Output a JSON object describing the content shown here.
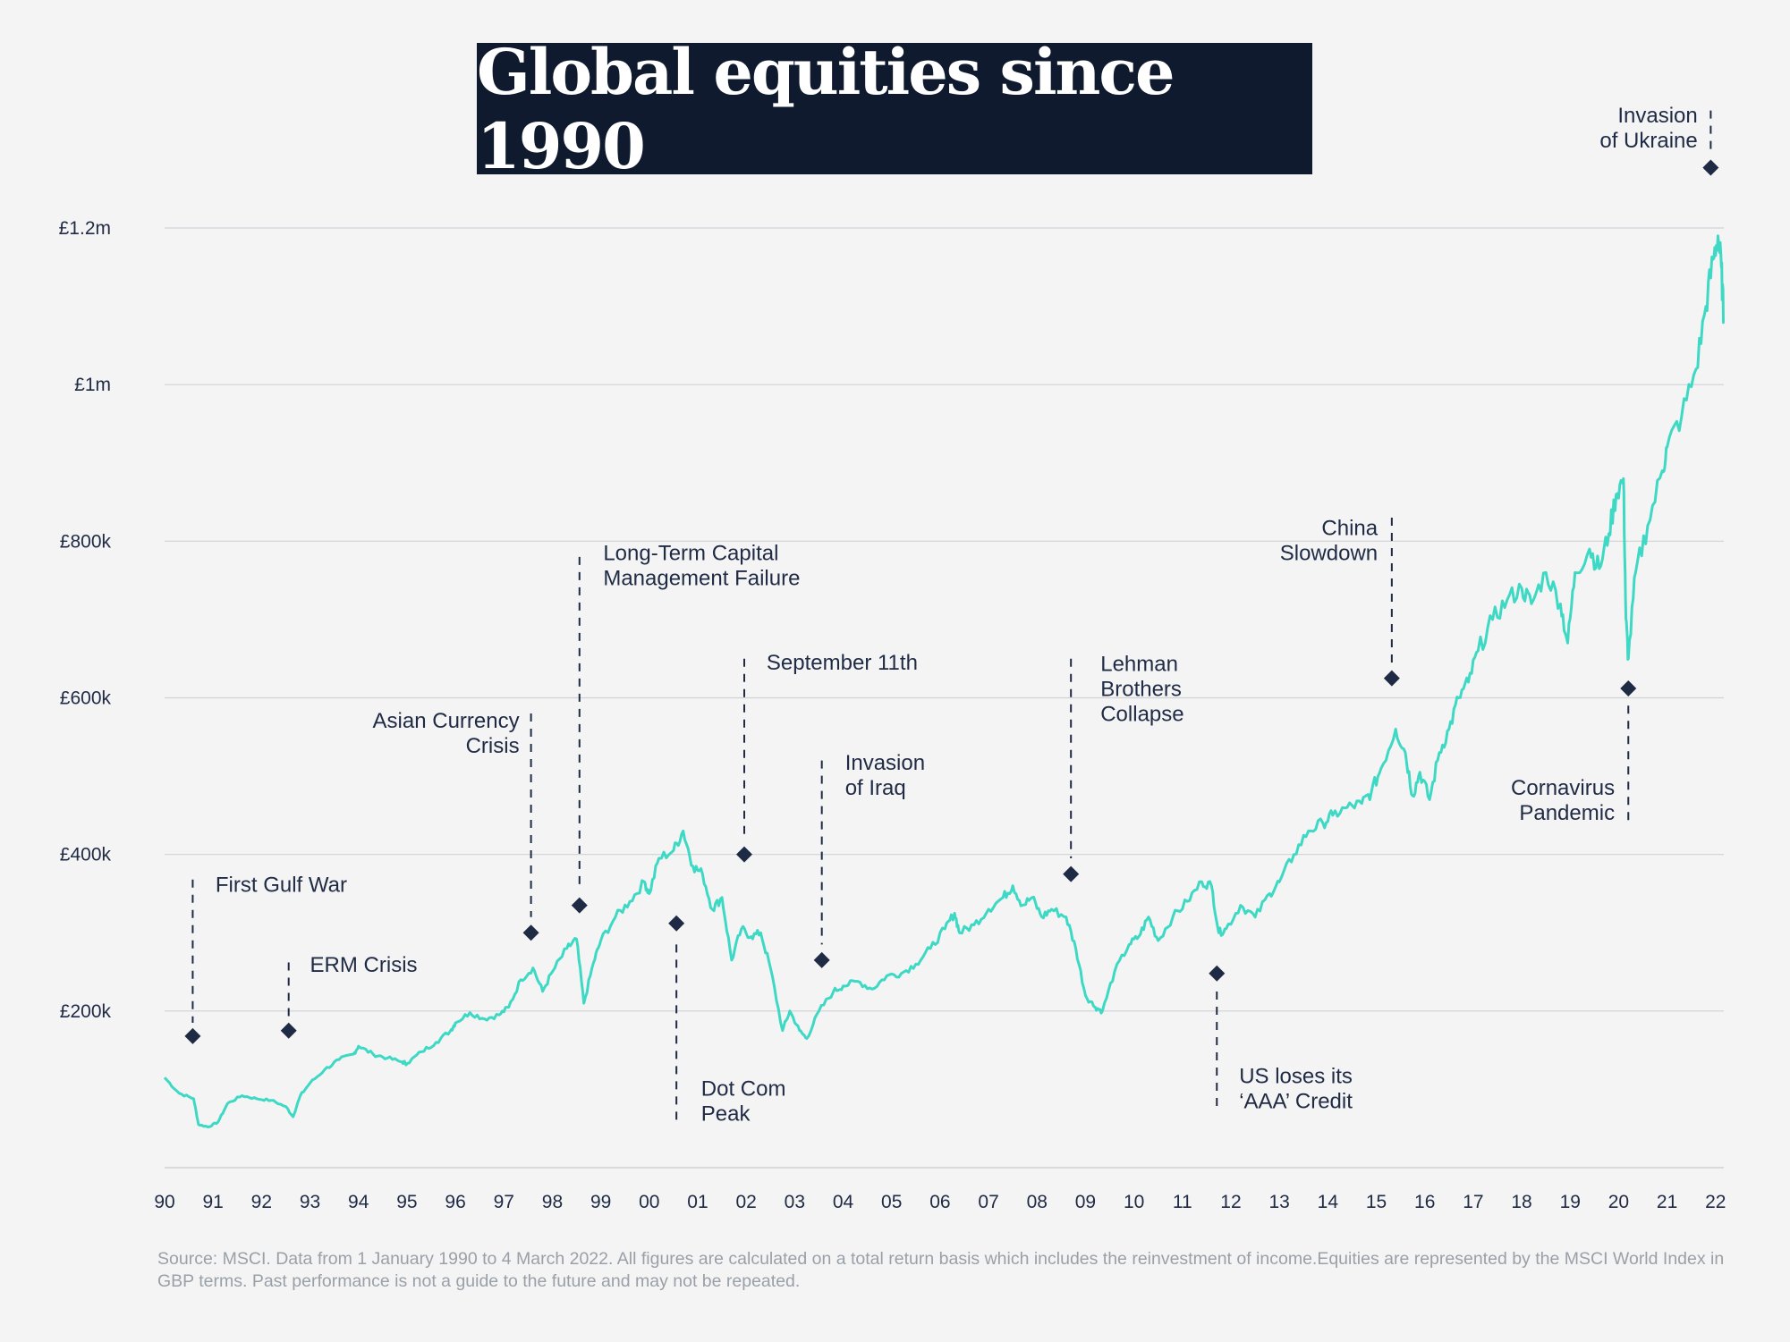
{
  "chart_data": {
    "type": "line",
    "title": "Global equities since 1990",
    "ylim": [
      0,
      1200000
    ],
    "yticks": [
      {
        "value": 200000,
        "label": "£200k"
      },
      {
        "value": 400000,
        "label": "£400k"
      },
      {
        "value": 600000,
        "label": "£600k"
      },
      {
        "value": 800000,
        "label": "£800k"
      },
      {
        "value": 1000000,
        "label": "£1m"
      },
      {
        "value": 1200000,
        "label": "£1.2m"
      }
    ],
    "xlim": [
      1990,
      2022.17
    ],
    "xticks": [
      "90",
      "91",
      "92",
      "93",
      "94",
      "95",
      "96",
      "97",
      "98",
      "99",
      "00",
      "01",
      "02",
      "03",
      "04",
      "05",
      "06",
      "07",
      "08",
      "09",
      "10",
      "11",
      "12",
      "13",
      "14",
      "15",
      "16",
      "17",
      "18",
      "19",
      "20",
      "21",
      "22"
    ],
    "grid": true,
    "series": [
      {
        "color": "#3ed9c4",
        "points": [
          [
            1990.0,
            115000
          ],
          [
            1990.3,
            95000
          ],
          [
            1990.6,
            88000
          ],
          [
            1990.7,
            55000
          ],
          [
            1990.9,
            52000
          ],
          [
            1991.1,
            58000
          ],
          [
            1991.3,
            82000
          ],
          [
            1991.6,
            92000
          ],
          [
            1991.9,
            88000
          ],
          [
            1992.2,
            86000
          ],
          [
            1992.5,
            78000
          ],
          [
            1992.65,
            65000
          ],
          [
            1992.8,
            92000
          ],
          [
            1993.0,
            108000
          ],
          [
            1993.3,
            125000
          ],
          [
            1993.6,
            138000
          ],
          [
            1993.9,
            145000
          ],
          [
            1994.0,
            155000
          ],
          [
            1994.3,
            145000
          ],
          [
            1994.6,
            140000
          ],
          [
            1994.9,
            135000
          ],
          [
            1995.0,
            133000
          ],
          [
            1995.3,
            148000
          ],
          [
            1995.6,
            160000
          ],
          [
            1995.9,
            175000
          ],
          [
            1996.0,
            185000
          ],
          [
            1996.3,
            198000
          ],
          [
            1996.6,
            190000
          ],
          [
            1996.9,
            195000
          ],
          [
            1997.1,
            205000
          ],
          [
            1997.35,
            240000
          ],
          [
            1997.6,
            255000
          ],
          [
            1997.8,
            225000
          ],
          [
            1998.0,
            250000
          ],
          [
            1998.3,
            280000
          ],
          [
            1998.5,
            292000
          ],
          [
            1998.65,
            210000
          ],
          [
            1998.85,
            262000
          ],
          [
            1999.0,
            290000
          ],
          [
            1999.3,
            320000
          ],
          [
            1999.6,
            340000
          ],
          [
            1999.9,
            365000
          ],
          [
            2000.0,
            350000
          ],
          [
            2000.2,
            395000
          ],
          [
            2000.5,
            405000
          ],
          [
            2000.7,
            430000
          ],
          [
            2000.9,
            385000
          ],
          [
            2001.1,
            375000
          ],
          [
            2001.3,
            330000
          ],
          [
            2001.5,
            345000
          ],
          [
            2001.7,
            265000
          ],
          [
            2001.9,
            305000
          ],
          [
            2002.1,
            295000
          ],
          [
            2002.3,
            300000
          ],
          [
            2002.5,
            255000
          ],
          [
            2002.75,
            175000
          ],
          [
            2002.9,
            200000
          ],
          [
            2003.1,
            175000
          ],
          [
            2003.25,
            165000
          ],
          [
            2003.5,
            200000
          ],
          [
            2003.8,
            225000
          ],
          [
            2004.0,
            232000
          ],
          [
            2004.3,
            238000
          ],
          [
            2004.6,
            228000
          ],
          [
            2004.9,
            245000
          ],
          [
            2005.2,
            248000
          ],
          [
            2005.5,
            260000
          ],
          [
            2005.8,
            280000
          ],
          [
            2006.1,
            305000
          ],
          [
            2006.3,
            325000
          ],
          [
            2006.4,
            300000
          ],
          [
            2006.7,
            310000
          ],
          [
            2007.0,
            330000
          ],
          [
            2007.3,
            345000
          ],
          [
            2007.5,
            360000
          ],
          [
            2007.7,
            335000
          ],
          [
            2007.9,
            345000
          ],
          [
            2008.1,
            320000
          ],
          [
            2008.3,
            330000
          ],
          [
            2008.6,
            320000
          ],
          [
            2008.8,
            280000
          ],
          [
            2009.0,
            220000
          ],
          [
            2009.2,
            205000
          ],
          [
            2009.35,
            200000
          ],
          [
            2009.6,
            250000
          ],
          [
            2009.9,
            285000
          ],
          [
            2010.1,
            295000
          ],
          [
            2010.3,
            320000
          ],
          [
            2010.5,
            290000
          ],
          [
            2010.8,
            320000
          ],
          [
            2011.1,
            340000
          ],
          [
            2011.4,
            365000
          ],
          [
            2011.6,
            360000
          ],
          [
            2011.75,
            300000
          ],
          [
            2011.9,
            305000
          ],
          [
            2012.2,
            335000
          ],
          [
            2012.5,
            320000
          ],
          [
            2012.8,
            350000
          ],
          [
            2013.0,
            365000
          ],
          [
            2013.3,
            400000
          ],
          [
            2013.6,
            430000
          ],
          [
            2013.9,
            440000
          ],
          [
            2014.1,
            450000
          ],
          [
            2014.4,
            460000
          ],
          [
            2014.7,
            465000
          ],
          [
            2014.9,
            480000
          ],
          [
            2015.1,
            510000
          ],
          [
            2015.4,
            560000
          ],
          [
            2015.6,
            530000
          ],
          [
            2015.75,
            475000
          ],
          [
            2015.9,
            505000
          ],
          [
            2016.1,
            470000
          ],
          [
            2016.3,
            530000
          ],
          [
            2016.5,
            560000
          ],
          [
            2016.7,
            600000
          ],
          [
            2016.9,
            620000
          ],
          [
            2017.1,
            660000
          ],
          [
            2017.4,
            700000
          ],
          [
            2017.7,
            725000
          ],
          [
            2018.0,
            740000
          ],
          [
            2018.2,
            720000
          ],
          [
            2018.5,
            760000
          ],
          [
            2018.8,
            720000
          ],
          [
            2018.95,
            670000
          ],
          [
            2019.1,
            760000
          ],
          [
            2019.4,
            790000
          ],
          [
            2019.6,
            765000
          ],
          [
            2019.8,
            810000
          ],
          [
            2019.95,
            860000
          ],
          [
            2020.1,
            880000
          ],
          [
            2020.15,
            700000
          ],
          [
            2020.2,
            650000
          ],
          [
            2020.35,
            760000
          ],
          [
            2020.6,
            820000
          ],
          [
            2020.9,
            890000
          ],
          [
            2021.0,
            920000
          ],
          [
            2021.3,
            960000
          ],
          [
            2021.6,
            1020000
          ],
          [
            2021.8,
            1100000
          ],
          [
            2021.95,
            1160000
          ],
          [
            2022.05,
            1190000
          ],
          [
            2022.12,
            1150000
          ],
          [
            2022.17,
            1080000
          ]
        ]
      }
    ],
    "annotations": [
      {
        "label": "First Gulf War",
        "x": 1990.58,
        "marker_value": 168000,
        "line_top": 368000,
        "line_bottom": 185000,
        "text_x": 1991.05,
        "text_value": 352000
      },
      {
        "label": "ERM Crisis",
        "x": 1992.56,
        "marker_value": 175000,
        "line_top": 262000,
        "line_bottom": 190000,
        "text_x": 1993.0,
        "text_value": 250000
      },
      {
        "label": "Asian Currency\nCrisis",
        "x": 1997.56,
        "marker_value": 300000,
        "line_top": 580000,
        "line_bottom": 320000,
        "text_x": 1997.32,
        "text_value": 562000,
        "anchor": "end"
      },
      {
        "label": "Long-Term Capital\nManagement Failure",
        "x": 1998.56,
        "marker_value": 335000,
        "line_top": 780000,
        "line_bottom": 355000,
        "text_x": 1999.05,
        "text_value": 776000
      },
      {
        "label": "Dot Com\nPeak",
        "x": 2000.56,
        "marker_value": 312000,
        "line_top": 285000,
        "line_bottom": 55000,
        "text_x": 2001.07,
        "text_value": 92000
      },
      {
        "label": "September 11th",
        "x": 2001.96,
        "marker_value": 400000,
        "line_top": 650000,
        "line_bottom": 420000,
        "text_x": 2002.42,
        "text_value": 636000
      },
      {
        "label": "Invasion\nof Iraq",
        "x": 2003.56,
        "marker_value": 265000,
        "line_top": 520000,
        "line_bottom": 285000,
        "text_x": 2004.04,
        "text_value": 508000
      },
      {
        "label": "Lehman\nBrothers\nCollapse",
        "x": 2008.7,
        "marker_value": 375000,
        "line_top": 650000,
        "line_bottom": 395000,
        "text_x": 2009.31,
        "text_value": 634000
      },
      {
        "label": "US loses its\n‘AAA’ Credit",
        "x": 2011.71,
        "marker_value": 248000,
        "line_top": 225000,
        "line_bottom": 75000,
        "text_x": 2012.17,
        "text_value": 108000
      },
      {
        "label": "China\nSlowdown",
        "x": 2015.32,
        "marker_value": 625000,
        "line_top": 830000,
        "line_bottom": 645000,
        "text_x": 2015.03,
        "text_value": 808000,
        "anchor": "end"
      },
      {
        "label": "Cornavirus\nPandemic",
        "x": 2020.2,
        "marker_value": 612000,
        "line_top": 590000,
        "line_bottom": 440000,
        "text_x": 2019.92,
        "text_value": 476000,
        "anchor": "end"
      },
      {
        "label": "Invasion\nof Ukraine",
        "x": 2021.9,
        "marker_value": 1277000,
        "line_top": 1350000,
        "line_bottom": 1295000,
        "text_x": 2021.63,
        "text_value": 1335000,
        "anchor": "end"
      }
    ]
  },
  "source_note": "Source: MSCI. Data from 1 January 1990 to 4 March 2022. All figures are calculated on a total return basis which includes the reinvestment of income.Equities are represented by the MSCI World Index in GBP terms. Past performance is not a guide to the future and may not be repeated."
}
